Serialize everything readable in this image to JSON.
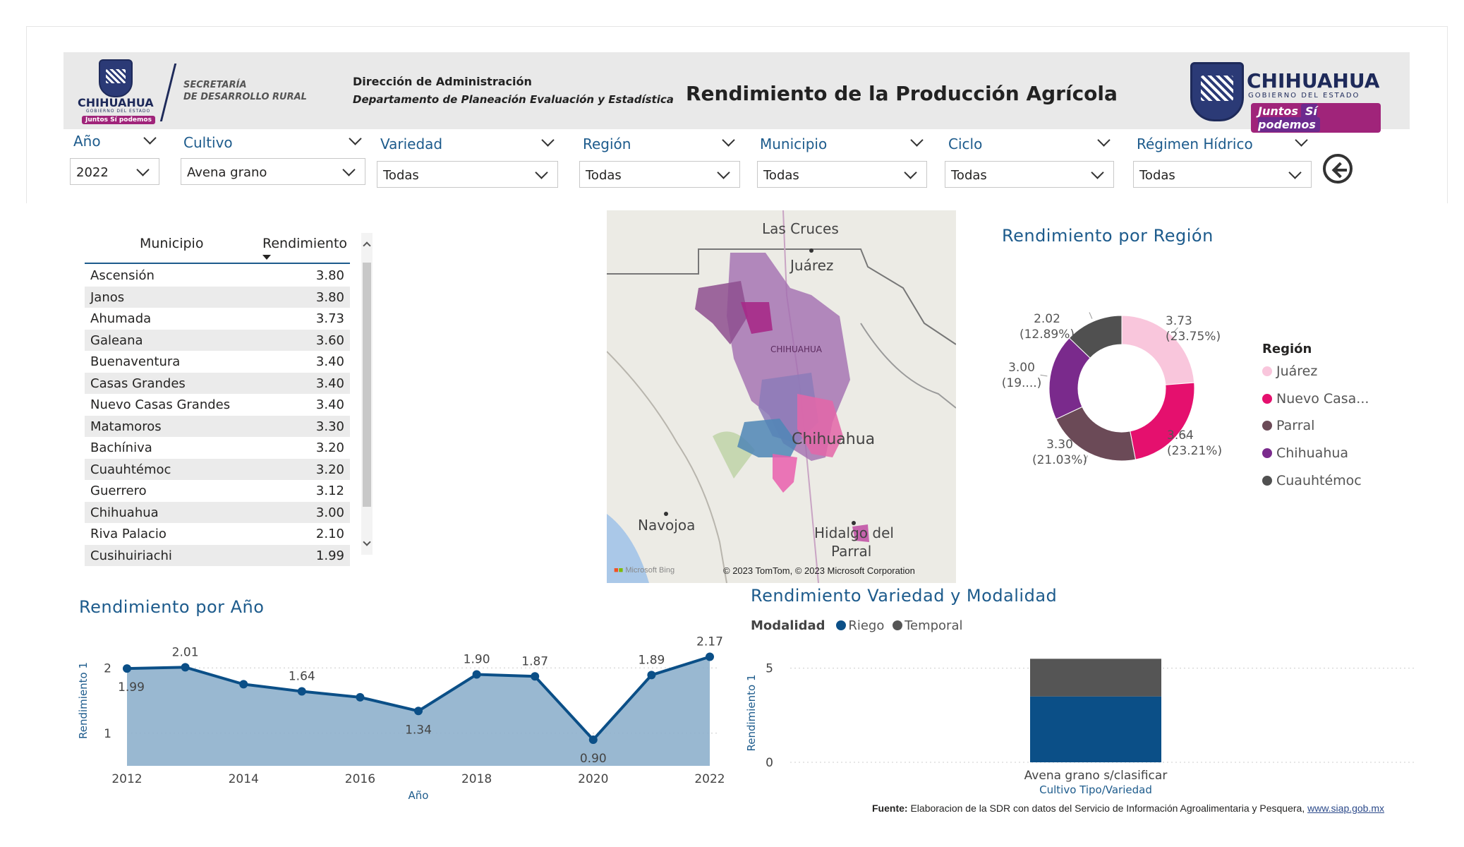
{
  "header": {
    "logo_left_word": "CHIHUAHUA",
    "logo_left_sub": "GOBIERNO DEL ESTADO",
    "logo_left_pill": "Juntos Sí podemos",
    "secretaria_line1": "SECRETARÍA",
    "secretaria_line2": "DE DESARROLLO RURAL",
    "direction": "Dirección de Administración",
    "department": "Departamento de Planeación Evaluación y Estadística",
    "title": "Rendimiento de la Producción Agrícola",
    "logo_right_word": "CHIHUAHUA",
    "logo_right_sub": "GOBIERNO DEL ESTADO",
    "logo_right_pill_a": "Juntos",
    "logo_right_pill_b": "Sí podemos"
  },
  "filters": [
    {
      "label": "Año",
      "value": "2022"
    },
    {
      "label": "Cultivo",
      "value": "Avena grano"
    },
    {
      "label": "Variedad",
      "value": "Todas"
    },
    {
      "label": "Región",
      "value": "Todas"
    },
    {
      "label": "Municipio",
      "value": "Todas"
    },
    {
      "label": "Ciclo",
      "value": "Todas"
    },
    {
      "label": "Régimen Hídrico",
      "value": "Todas"
    }
  ],
  "table": {
    "columns": [
      "Municipio",
      "Rendimiento"
    ],
    "rows": [
      [
        "Ascensión",
        "3.80"
      ],
      [
        "Janos",
        "3.80"
      ],
      [
        "Ahumada",
        "3.73"
      ],
      [
        "Galeana",
        "3.60"
      ],
      [
        "Buenaventura",
        "3.40"
      ],
      [
        "Casas Grandes",
        "3.40"
      ],
      [
        "Nuevo Casas Grandes",
        "3.40"
      ],
      [
        "Matamoros",
        "3.30"
      ],
      [
        "Bachíniva",
        "3.20"
      ],
      [
        "Cuauhtémoc",
        "3.20"
      ],
      [
        "Guerrero",
        "3.12"
      ],
      [
        "Chihuahua",
        "3.00"
      ],
      [
        "Riva Palacio",
        "2.10"
      ],
      [
        "Cusihuiriachi",
        "1.99"
      ]
    ]
  },
  "map": {
    "labels": [
      "Las Cruces",
      "Juárez",
      "Chihuahua",
      "Navojoa",
      "Hidalgo del",
      "Parral"
    ],
    "state_label": "CHIHUAHUA",
    "bing": "Microsoft Bing",
    "copyright": "© 2023 TomTom, © 2023 Microsoft Corporation"
  },
  "donut": {
    "title": "Rendimiento por Región",
    "legend_title": "Región",
    "legend": [
      "Juárez",
      "Nuevo Casa...",
      "Parral",
      "Chihuahua",
      "Cuauhtémoc"
    ],
    "label_values": [
      "3.73",
      "3.64",
      "3.30",
      "3.00",
      "2.02"
    ],
    "label_pcts": [
      "(23.75%)",
      "(23.21%)",
      "(21.03%)",
      "(19....)",
      "(12.89%)"
    ],
    "colors": [
      "#f9c6dc",
      "#e5106e",
      "#6b4a57",
      "#7a2a8c",
      "#505050"
    ]
  },
  "line": {
    "title": "Rendimiento por Año",
    "xlabel": "Año",
    "ylabel": "Rendimiento 1",
    "color": "#0b4f87"
  },
  "bar": {
    "title": "Rendimiento Variedad y Modalidad",
    "legend_title": "Modalidad",
    "legend": [
      "Riego",
      "Temporal"
    ],
    "xlabel": "Cultivo Tipo/Variedad",
    "ylabel": "Rendimiento 1",
    "colors": [
      "#0b4f87",
      "#555555"
    ]
  },
  "footer": {
    "label": "Fuente:",
    "text": "Elaboracion de la SDR con datos del Servicio de Información Agroalimentaria y Pesquera,",
    "link": "www.siap.gob.mx"
  },
  "chart_data": [
    {
      "type": "area",
      "title": "Rendimiento por Año",
      "xlabel": "Año",
      "ylabel": "Rendimiento 1",
      "x": [
        2012,
        2013,
        2014,
        2015,
        2016,
        2017,
        2018,
        2019,
        2020,
        2021,
        2022
      ],
      "values": [
        1.99,
        2.01,
        1.75,
        1.64,
        1.55,
        1.34,
        1.9,
        1.87,
        0.9,
        1.89,
        2.17
      ],
      "data_labels": {
        "2012": "1.99",
        "2013": "2.01",
        "2015": "1.64",
        "2017": "1.34",
        "2018": "1.90",
        "2019": "1.87",
        "2020": "0.90",
        "2021": "1.89",
        "2022": "2.17"
      },
      "xticks": [
        "2012",
        "2014",
        "2016",
        "2018",
        "2020",
        "2022"
      ],
      "yticks": [
        "1",
        "2"
      ],
      "ylim": [
        0.5,
        2.5
      ]
    },
    {
      "type": "pie",
      "title": "Rendimiento por Región",
      "categories": [
        "Juárez",
        "Nuevo Casa...",
        "Parral",
        "Chihuahua",
        "Cuauhtémoc"
      ],
      "values": [
        3.73,
        3.64,
        3.3,
        3.0,
        2.02
      ],
      "percent_labels": [
        "23.75%",
        "23.21%",
        "21.03%",
        "19....",
        "12.89%"
      ]
    },
    {
      "type": "bar",
      "title": "Rendimiento Variedad y Modalidad",
      "categories": [
        "Avena grano s/clasificar"
      ],
      "series": [
        {
          "name": "Riego",
          "values": [
            3.5
          ]
        },
        {
          "name": "Temporal",
          "values": [
            2.0
          ]
        }
      ],
      "stacked": true,
      "xlabel": "Cultivo Tipo/Variedad",
      "ylabel": "Rendimiento 1",
      "yticks": [
        "0",
        "5"
      ],
      "ylim": [
        0,
        6
      ]
    }
  ]
}
